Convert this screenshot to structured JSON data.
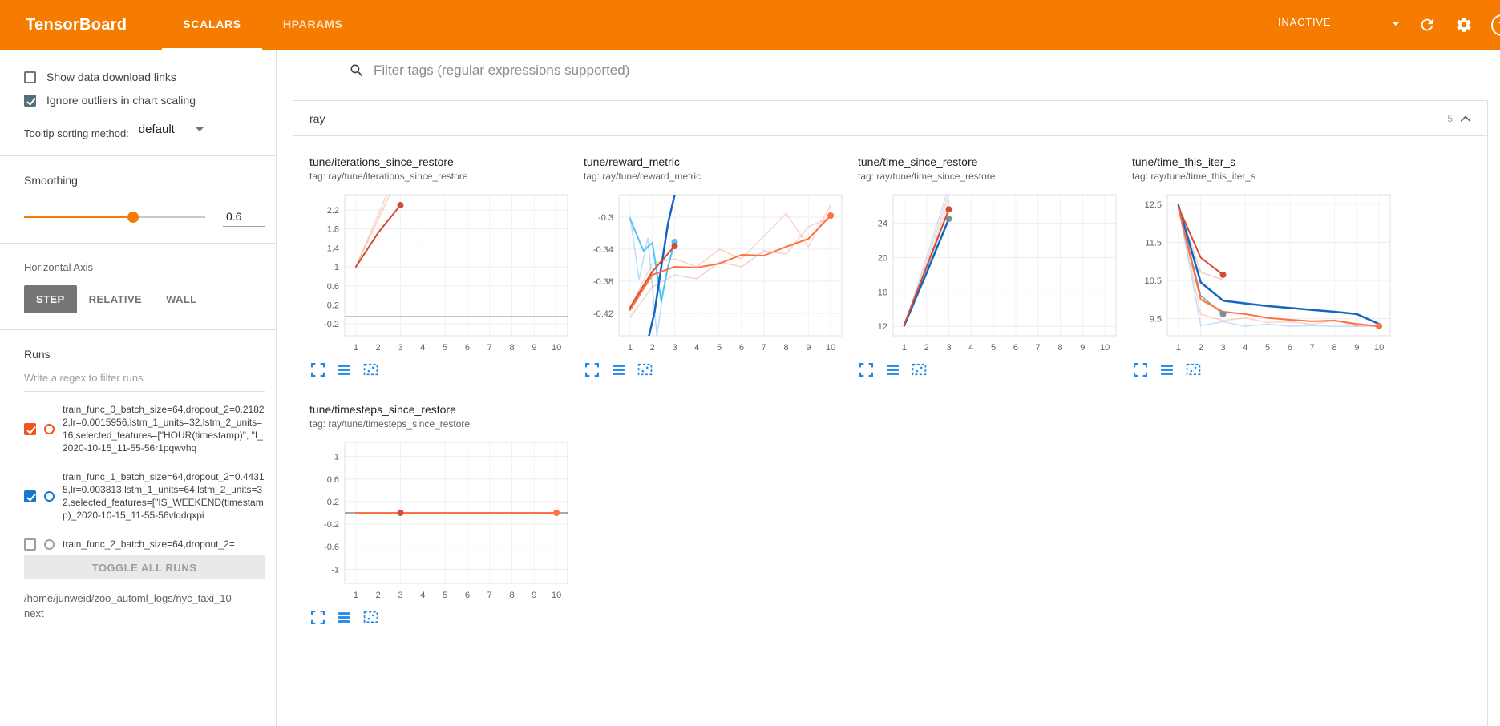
{
  "header": {
    "title": "TensorBoard",
    "tabs": [
      {
        "label": "SCALARS",
        "active": true
      },
      {
        "label": "HPARAMS",
        "active": false
      }
    ],
    "status_dropdown": {
      "value": "INACTIVE"
    },
    "help_glyph": "?"
  },
  "sidebar": {
    "checkboxes": [
      {
        "label": "Show data download links",
        "checked": false
      },
      {
        "label": "Ignore outliers in chart scaling",
        "checked": true
      }
    ],
    "tooltip_sorting": {
      "label": "Tooltip sorting method:",
      "value": "default"
    },
    "smoothing": {
      "label": "Smoothing",
      "value": "0.6",
      "percent": 60
    },
    "horizontal_axis": {
      "label": "Horizontal Axis",
      "options": [
        "STEP",
        "RELATIVE",
        "WALL"
      ],
      "selected": "STEP"
    },
    "runs": {
      "label": "Runs",
      "filter_placeholder": "Write a regex to filter runs",
      "items": [
        {
          "text": "train_func_0_batch_size=64,dropout_2=0.21822,lr=0.0015956,lstm_1_units=32,lstm_2_units=16,selected_features=[\"HOUR(timestamp)\", \"I_2020-10-15_11-55-56r1pqwvhq",
          "color": "#f4511e",
          "checked": true
        },
        {
          "text": "train_func_1_batch_size=64,dropout_2=0.44315,lr=0.003813,lstm_1_units=64,lstm_2_units=32,selected_features=[\"IS_WEEKEND(timestamp)_2020-10-15_11-55-56vlqdqxpi",
          "color": "#1976d2",
          "checked": true
        },
        {
          "text": "train_func_2_batch_size=64,dropout_2=",
          "color": "#9e9e9e",
          "checked": false
        }
      ],
      "toggle_all_label": "TOGGLE ALL RUNS",
      "log_path": "/home/junweid/zoo_automl_logs/nyc_taxi_10next"
    }
  },
  "main": {
    "tag_filter_placeholder": "Filter tags (regular expressions supported)",
    "group": {
      "name": "ray",
      "count": "5"
    }
  },
  "colors": {
    "header_bg": "#f57c00",
    "accent_orange": "#f57c00",
    "run_orange": "#f4511e",
    "run_blue": "#1976d2",
    "toolbar_icon_blue": "#1e88e5",
    "series_red": "#cf4e31",
    "series_orange": "#ff7043",
    "series_dark_blue": "#1565c0",
    "series_light_blue": "#64b5f6"
  },
  "icon_names": [
    "search-icon",
    "caret-down-icon",
    "refresh-icon",
    "settings-gear-icon",
    "help-icon",
    "collapse-chevron-icon",
    "expand-chart-icon",
    "run-menu-icon",
    "pin-chart-icon"
  ],
  "chart_data": [
    {
      "type": "line",
      "title": "tune/iterations_since_restore",
      "tag": "tag: ray/tune/iterations_since_restore",
      "xlim": [
        0.5,
        10.5
      ],
      "ylim": [
        -0.45,
        2.52
      ],
      "xticks": [
        1,
        2,
        3,
        4,
        5,
        6,
        7,
        8,
        9,
        10
      ],
      "yticks": [
        -0.2,
        0.2,
        0.6,
        1,
        1.4,
        1.8,
        2.2
      ],
      "series": [
        {
          "name": "raw-orange",
          "color": "#ff7043",
          "opacity": 0.3,
          "width": 1.5,
          "points": [
            [
              1,
              1
            ],
            [
              2,
              2.1
            ],
            [
              3,
              3.2
            ]
          ]
        },
        {
          "name": "raw-red",
          "color": "#cf4e31",
          "opacity": 0.25,
          "width": 1.5,
          "points": [
            [
              1,
              1
            ],
            [
              2,
              2.0
            ],
            [
              3,
              3.0
            ]
          ]
        },
        {
          "name": "flat-gray",
          "color": "#8a8a8a",
          "opacity": 1,
          "width": 1.5,
          "points": [
            [
              0.5,
              -0.05
            ],
            [
              10.5,
              -0.05
            ]
          ]
        },
        {
          "name": "smoothed-red",
          "color": "#cf4e31",
          "opacity": 1,
          "width": 2,
          "points": [
            [
              1,
              1
            ],
            [
              2,
              1.72
            ],
            [
              3,
              2.3
            ]
          ],
          "dot": [
            3,
            2.3
          ]
        }
      ]
    },
    {
      "type": "line",
      "title": "tune/reward_metric",
      "tag": "tag: ray/tune/reward_metric",
      "xlim": [
        0.5,
        10.5
      ],
      "ylim": [
        -0.448,
        -0.272
      ],
      "xticks": [
        1,
        2,
        3,
        4,
        5,
        6,
        7,
        8,
        9,
        10
      ],
      "yticks": [
        -0.42,
        -0.38,
        -0.34,
        -0.3
      ],
      "series": [
        {
          "name": "raw-orange",
          "color": "#ff7043",
          "opacity": 0.3,
          "width": 1.5,
          "points": [
            [
              1,
              -0.412
            ],
            [
              2,
              -0.358
            ],
            [
              3,
              -0.352
            ],
            [
              4,
              -0.362
            ],
            [
              5,
              -0.34
            ],
            [
              6,
              -0.352
            ],
            [
              7,
              -0.324
            ],
            [
              8,
              -0.295
            ],
            [
              9,
              -0.337
            ],
            [
              10,
              -0.285
            ]
          ]
        },
        {
          "name": "raw-red",
          "color": "#cf4e31",
          "opacity": 0.25,
          "width": 1.5,
          "points": [
            [
              1,
              -0.425
            ],
            [
              2,
              -0.387
            ],
            [
              3,
              -0.372
            ],
            [
              4,
              -0.377
            ],
            [
              5,
              -0.356
            ],
            [
              6,
              -0.362
            ],
            [
              7,
              -0.342
            ],
            [
              8,
              -0.346
            ],
            [
              9,
              -0.312
            ],
            [
              10,
              -0.3
            ]
          ]
        },
        {
          "name": "raw-light-blue",
          "color": "#64b5f6",
          "opacity": 0.45,
          "width": 1.5,
          "points": [
            [
              1,
              -0.298
            ],
            [
              1.4,
              -0.378
            ],
            [
              1.8,
              -0.326
            ],
            [
              2.2,
              -0.448
            ],
            [
              2.6,
              -0.372
            ],
            [
              3,
              -0.328
            ]
          ]
        },
        {
          "name": "smoothed-light-blue",
          "color": "#4fc3f7",
          "opacity": 1,
          "width": 2,
          "points": [
            [
              1,
              -0.302
            ],
            [
              1.6,
              -0.342
            ],
            [
              2,
              -0.332
            ],
            [
              2.4,
              -0.405
            ],
            [
              2.7,
              -0.362
            ],
            [
              3,
              -0.331
            ]
          ],
          "dot": [
            3,
            -0.331
          ]
        },
        {
          "name": "smoothed-dark-blue",
          "color": "#1565c0",
          "opacity": 1,
          "width": 2.5,
          "points": [
            [
              1.85,
              -0.448
            ],
            [
              2.1,
              -0.418
            ],
            [
              2.4,
              -0.362
            ],
            [
              2.7,
              -0.308
            ],
            [
              3,
              -0.272
            ]
          ]
        },
        {
          "name": "smoothed-red",
          "color": "#cf4e31",
          "opacity": 1,
          "width": 2,
          "points": [
            [
              1,
              -0.413
            ],
            [
              1.5,
              -0.39
            ],
            [
              2,
              -0.368
            ],
            [
              2.5,
              -0.352
            ],
            [
              3,
              -0.336
            ]
          ],
          "dot": [
            3,
            -0.336
          ]
        },
        {
          "name": "smoothed-orange",
          "color": "#ff7043",
          "opacity": 1,
          "width": 2,
          "points": [
            [
              1,
              -0.416
            ],
            [
              2,
              -0.372
            ],
            [
              3,
              -0.362
            ],
            [
              4,
              -0.363
            ],
            [
              5,
              -0.358
            ],
            [
              6,
              -0.347
            ],
            [
              7,
              -0.348
            ],
            [
              8,
              -0.337
            ],
            [
              9,
              -0.327
            ],
            [
              10,
              -0.298
            ]
          ],
          "dot": [
            10,
            -0.298
          ]
        }
      ]
    },
    {
      "type": "line",
      "title": "tune/time_since_restore",
      "tag": "tag: ray/tune/time_since_restore",
      "xlim": [
        0.5,
        10.5
      ],
      "ylim": [
        10.9,
        27.3
      ],
      "xticks": [
        1,
        2,
        3,
        4,
        5,
        6,
        7,
        8,
        9,
        10
      ],
      "yticks": [
        12,
        16,
        20,
        24
      ],
      "series": [
        {
          "name": "raw-purple",
          "color": "#b39ddb",
          "opacity": 0.4,
          "width": 1.5,
          "points": [
            [
              1,
              12
            ],
            [
              2,
              20
            ],
            [
              3,
              28.2
            ]
          ]
        },
        {
          "name": "raw-gray",
          "color": "#9e9e9e",
          "opacity": 0.35,
          "width": 1.5,
          "points": [
            [
              1,
              12
            ],
            [
              2,
              19.4
            ],
            [
              3,
              27.4
            ]
          ]
        },
        {
          "name": "raw-orange",
          "color": "#ff7043",
          "opacity": 0.3,
          "width": 1.5,
          "points": [
            [
              1,
              12
            ],
            [
              2,
              18.9
            ],
            [
              3,
              26.6
            ]
          ]
        },
        {
          "name": "raw-light-blue",
          "color": "#64b5f6",
          "opacity": 0.35,
          "width": 1.5,
          "points": [
            [
              1,
              12
            ],
            [
              2,
              18.4
            ],
            [
              3,
              25.6
            ]
          ]
        },
        {
          "name": "smoothed-dark-blue",
          "color": "#1565c0",
          "opacity": 1,
          "width": 2.5,
          "points": [
            [
              1,
              12.1
            ],
            [
              2,
              18.2
            ],
            [
              3,
              24.5
            ]
          ],
          "dot": [
            3,
            24.5
          ],
          "dotColor": "#78909c"
        },
        {
          "name": "smoothed-red",
          "color": "#cf4e31",
          "opacity": 1,
          "width": 2,
          "points": [
            [
              1,
              12.2
            ],
            [
              2,
              18.9
            ],
            [
              3,
              25.6
            ]
          ],
          "dot": [
            3,
            25.6
          ]
        }
      ]
    },
    {
      "type": "line",
      "title": "tune/time_this_iter_s",
      "tag": "tag: ray/tune/time_this_iter_s",
      "xlim": [
        0.5,
        10.5
      ],
      "ylim": [
        9.05,
        12.75
      ],
      "xticks": [
        1,
        2,
        3,
        4,
        5,
        6,
        7,
        8,
        9,
        10
      ],
      "yticks": [
        9.5,
        10.5,
        11.5,
        12.5
      ],
      "series": [
        {
          "name": "raw-light-blue",
          "color": "#64b5f6",
          "opacity": 0.4,
          "width": 1.5,
          "points": [
            [
              1,
              12.45
            ],
            [
              2,
              9.32
            ],
            [
              3,
              9.42
            ],
            [
              4,
              9.3
            ],
            [
              5,
              9.36
            ],
            [
              6,
              9.3
            ],
            [
              7,
              9.32
            ],
            [
              8,
              9.3
            ],
            [
              9,
              9.3
            ],
            [
              10,
              9.34
            ]
          ]
        },
        {
          "name": "raw-orange",
          "color": "#ff7043",
          "opacity": 0.3,
          "width": 1.5,
          "points": [
            [
              1,
              12.4
            ],
            [
              2,
              9.62
            ],
            [
              3,
              9.45
            ],
            [
              4,
              9.52
            ],
            [
              5,
              9.4
            ],
            [
              6,
              9.42
            ],
            [
              7,
              9.35
            ],
            [
              8,
              9.46
            ],
            [
              9,
              9.3
            ],
            [
              10,
              9.3
            ]
          ]
        },
        {
          "name": "raw-red",
          "color": "#cf4e31",
          "opacity": 0.3,
          "width": 1.5,
          "points": [
            [
              1,
              12.42
            ],
            [
              2,
              10.72
            ],
            [
              3,
              10.52
            ]
          ]
        },
        {
          "name": "smoothed-gray-blue",
          "color": "#78909c",
          "opacity": 0.9,
          "width": 1.5,
          "points": [
            [
              1,
              12.45
            ],
            [
              2,
              10.1
            ],
            [
              3,
              9.62
            ]
          ],
          "dot": [
            3,
            9.62
          ]
        },
        {
          "name": "smoothed-dark-blue",
          "color": "#1565c0",
          "opacity": 1,
          "width": 2.5,
          "points": [
            [
              1,
              12.47
            ],
            [
              2,
              10.45
            ],
            [
              3,
              9.97
            ],
            [
              4,
              9.9
            ],
            [
              5,
              9.83
            ],
            [
              6,
              9.78
            ],
            [
              7,
              9.73
            ],
            [
              8,
              9.68
            ],
            [
              9,
              9.62
            ],
            [
              10,
              9.36
            ]
          ]
        },
        {
          "name": "smoothed-red",
          "color": "#cf4e31",
          "opacity": 1,
          "width": 2,
          "points": [
            [
              1,
              12.42
            ],
            [
              2,
              11.1
            ],
            [
              3,
              10.65
            ]
          ],
          "dot": [
            3,
            10.65
          ]
        },
        {
          "name": "smoothed-orange",
          "color": "#ff7043",
          "opacity": 1,
          "width": 2,
          "points": [
            [
              1,
              12.4
            ],
            [
              2,
              10.0
            ],
            [
              3,
              9.68
            ],
            [
              4,
              9.62
            ],
            [
              5,
              9.52
            ],
            [
              6,
              9.47
            ],
            [
              7,
              9.43
            ],
            [
              8,
              9.45
            ],
            [
              9,
              9.36
            ],
            [
              10,
              9.3
            ]
          ],
          "dot": [
            10,
            9.3
          ]
        }
      ]
    },
    {
      "type": "line",
      "title": "tune/timesteps_since_restore",
      "tag": "tag: ray/tune/timesteps_since_restore",
      "xlim": [
        0.5,
        10.5
      ],
      "ylim": [
        -1.25,
        1.25
      ],
      "xticks": [
        1,
        2,
        3,
        4,
        5,
        6,
        7,
        8,
        9,
        10
      ],
      "yticks": [
        -1,
        -0.6,
        -0.2,
        0.2,
        0.6,
        1
      ],
      "series": [
        {
          "name": "flat-gray",
          "color": "#8a8a8a",
          "opacity": 1,
          "width": 1.5,
          "points": [
            [
              0.5,
              0
            ],
            [
              10.5,
              0
            ]
          ]
        },
        {
          "name": "smoothed-red",
          "color": "#cf4e31",
          "opacity": 1,
          "width": 2,
          "points": [
            [
              1,
              0
            ],
            [
              3,
              0
            ]
          ],
          "dot": [
            3,
            0
          ]
        },
        {
          "name": "smoothed-orange",
          "color": "#ff7043",
          "opacity": 1,
          "width": 2,
          "points": [
            [
              1,
              0
            ],
            [
              10,
              0
            ]
          ],
          "dot": [
            10,
            0
          ]
        }
      ]
    }
  ]
}
